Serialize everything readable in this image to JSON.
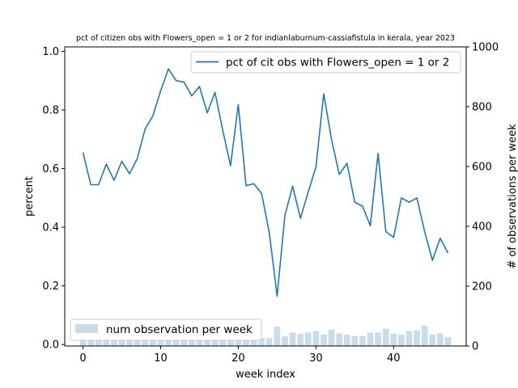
{
  "chart_data": {
    "type": "line+bar",
    "title": "pct of citizen obs with Flowers_open = 1 or 2 for indianlaburnum-cassiafistula in kerala, year 2023",
    "xlabel": "week index",
    "ylabel": "percent",
    "y2label": "# of observations per week",
    "xlim": [
      -2.35,
      49.35
    ],
    "ylim": [
      -0.005,
      1.015
    ],
    "y2lim": [
      0,
      1000
    ],
    "xticks": [
      "0",
      "10",
      "20",
      "30",
      "40"
    ],
    "yticks": [
      "0.0",
      "0.2",
      "0.4",
      "0.6",
      "0.8",
      "1.0"
    ],
    "y2ticks": [
      "0",
      "200",
      "400",
      "600",
      "800",
      "1000"
    ],
    "grid": false,
    "line_series": {
      "name": "pct of cit obs with Flowers_open = 1 or 2",
      "color": "#1f77b4",
      "legend_position": "top-right",
      "x": [
        0,
        1,
        2,
        3,
        4,
        5,
        6,
        7,
        8,
        9,
        10,
        11,
        12,
        13,
        14,
        15,
        16,
        17,
        18,
        19,
        20,
        21,
        22,
        23,
        24,
        25,
        26,
        27,
        28,
        29,
        30,
        31,
        32,
        33,
        34,
        35,
        36,
        37,
        38,
        39,
        40,
        41,
        42,
        43,
        44,
        45,
        46,
        47
      ],
      "values": [
        0.655,
        0.545,
        0.545,
        0.615,
        0.56,
        0.625,
        0.582,
        0.635,
        0.735,
        0.78,
        0.865,
        0.94,
        0.9,
        0.895,
        0.848,
        0.88,
        0.79,
        0.86,
        0.73,
        0.61,
        0.818,
        0.542,
        0.548,
        0.515,
        0.38,
        0.165,
        0.44,
        0.54,
        0.43,
        0.52,
        0.605,
        0.855,
        0.7,
        0.58,
        0.618,
        0.485,
        0.472,
        0.405,
        0.652,
        0.385,
        0.365,
        0.5,
        0.485,
        0.5,
        0.385,
        0.287,
        0.362,
        0.312
      ]
    },
    "bar_series": {
      "name": "num observation per week",
      "color": "#1f77b4",
      "opacity": 0.25,
      "legend_position": "bottom-left",
      "x": [
        0,
        1,
        2,
        3,
        4,
        5,
        6,
        7,
        8,
        9,
        10,
        11,
        12,
        13,
        14,
        15,
        16,
        17,
        18,
        19,
        20,
        21,
        22,
        23,
        24,
        25,
        26,
        27,
        28,
        29,
        30,
        31,
        32,
        33,
        34,
        35,
        36,
        37,
        38,
        39,
        40,
        41,
        42,
        43,
        44,
        45,
        46,
        47
      ],
      "values": [
        18,
        22,
        18,
        18,
        18,
        18,
        18,
        18,
        18,
        18,
        20,
        20,
        20,
        18,
        20,
        20,
        20,
        20,
        20,
        20,
        22,
        20,
        20,
        26,
        26,
        65,
        32,
        45,
        40,
        45,
        50,
        38,
        55,
        42,
        38,
        33,
        33,
        45,
        45,
        58,
        42,
        38,
        50,
        52,
        68,
        38,
        42,
        30
      ]
    }
  }
}
